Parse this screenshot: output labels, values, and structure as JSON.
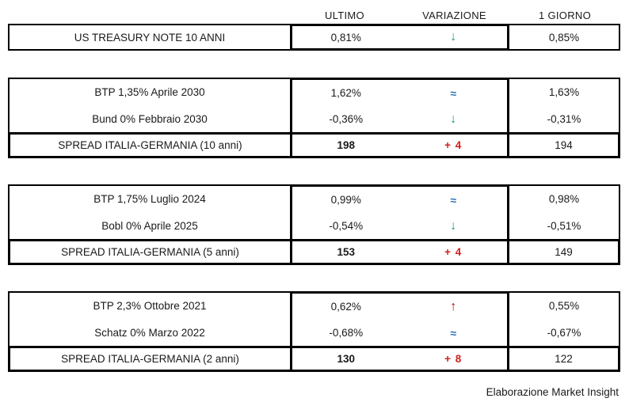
{
  "header": {
    "ultimo": "ULTIMO",
    "variazione": "VARIAZIONE",
    "giorno": "1 GIORNO"
  },
  "colors": {
    "arrow-down": "#21a158",
    "arrow-up": "#c00000",
    "flat": "#2e74b5",
    "spread-change": "#d02020",
    "text": "#1a1a1a",
    "border": "#000000"
  },
  "symbols": {
    "down": "↓",
    "up": "↑",
    "flat": "≈"
  },
  "groups": [
    {
      "rows": [
        {
          "label": "US TREASURY NOTE 10 ANNI",
          "ultimo": "0,81%",
          "dir": "down",
          "symbol": "↓",
          "giorno": "0,85%"
        }
      ]
    },
    {
      "rows": [
        {
          "label": "BTP 1,35% Aprile 2030",
          "ultimo": "1,62%",
          "dir": "flat",
          "symbol": "≈",
          "giorno": "1,63%"
        },
        {
          "label": "Bund 0% Febbraio 2030",
          "ultimo": "-0,36%",
          "dir": "down",
          "symbol": "↓",
          "giorno": "-0,31%"
        }
      ],
      "spread": {
        "label": "SPREAD ITALIA-GERMANIA (10 anni)",
        "ultimo": "198",
        "variazione": "+ 4",
        "giorno": "194"
      }
    },
    {
      "rows": [
        {
          "label": "BTP 1,75% Luglio 2024",
          "ultimo": "0,99%",
          "dir": "flat",
          "symbol": "≈",
          "giorno": "0,98%"
        },
        {
          "label": "Bobl 0% Aprile 2025",
          "ultimo": "-0,54%",
          "dir": "down",
          "symbol": "↓",
          "giorno": "-0,51%"
        }
      ],
      "spread": {
        "label": "SPREAD ITALIA-GERMANIA (5 anni)",
        "ultimo": "153",
        "variazione": "+ 4",
        "giorno": "149"
      }
    },
    {
      "rows": [
        {
          "label": "BTP 2,3% Ottobre 2021",
          "ultimo": "0,62%",
          "dir": "up",
          "symbol": "↑",
          "giorno": "0,55%"
        },
        {
          "label": "Schatz 0% Marzo 2022",
          "ultimo": "-0,68%",
          "dir": "flat",
          "symbol": "≈",
          "giorno": "-0,67%"
        }
      ],
      "spread": {
        "label": "SPREAD ITALIA-GERMANIA (2 anni)",
        "ultimo": "130",
        "variazione": "+ 8",
        "giorno": "122"
      }
    }
  ],
  "footer": {
    "credit": "Elaborazione Market Insight"
  }
}
